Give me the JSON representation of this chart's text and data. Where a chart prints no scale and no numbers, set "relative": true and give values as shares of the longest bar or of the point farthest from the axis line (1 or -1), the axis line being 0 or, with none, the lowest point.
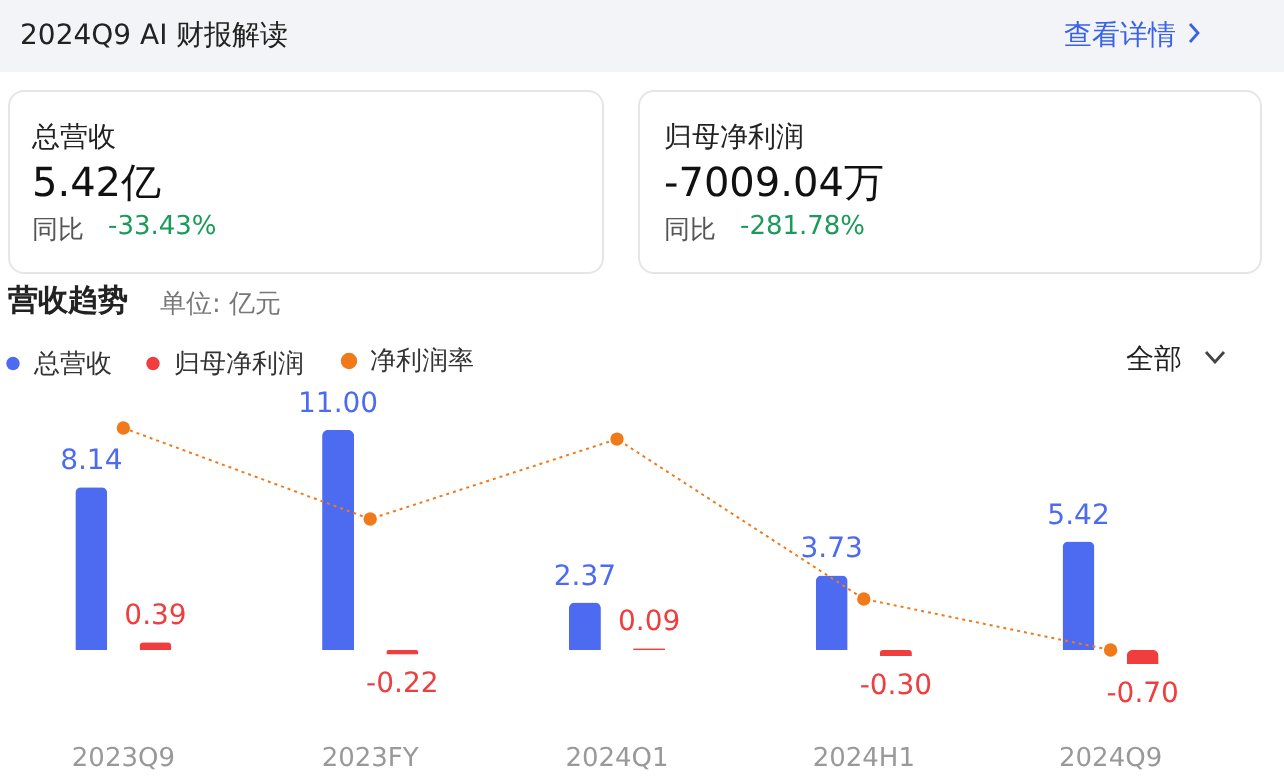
{
  "chart_data": [
    {
      "type": "bar",
      "title": "营收趋势",
      "subtitle": "单位: 亿元",
      "annotations": [
        "2024Q9 AI 财报解读",
        "查看详情",
        "总营收",
        "5.42亿",
        "同比",
        "-33.43%",
        "归母净利润",
        "-7009.04万",
        "同比",
        "-281.78%",
        "全部"
      ],
      "categories": [
        "2023Q9",
        "2023FY",
        "2024Q1",
        "2024H1",
        "2024Q9"
      ],
      "series": [
        {
          "name": "总营收",
          "color": "#4d6bf0",
          "values": [
            8.14,
            11.0,
            2.37,
            3.73,
            5.42
          ],
          "value_labels": [
            "8.14",
            "11.00",
            "2.37",
            "3.73",
            "5.42"
          ]
        },
        {
          "name": "归母净利润",
          "color": "#f03d3d",
          "values": [
            0.39,
            -0.22,
            0.09,
            -0.3,
            -0.7
          ],
          "value_labels": [
            "0.39",
            "-0.22",
            "0.09",
            "-0.30",
            "-0.70"
          ]
        }
      ],
      "legend": "top left"
    },
    {
      "type": "line",
      "relative": true,
      "categories": [
        null,
        null,
        null,
        null,
        null
      ],
      "series": [
        {
          "name": "净利润率",
          "color": "#f07a1a",
          "values": [
            1,
            0.59,
            0.95,
            0.23,
            0
          ]
        }
      ],
      "marker": "circle",
      "line_style": "dotted",
      "legend": "top left"
    }
  ]
}
